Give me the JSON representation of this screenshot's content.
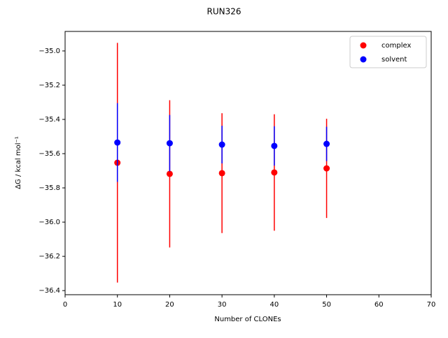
{
  "chart_data": {
    "type": "errorbar-scatter",
    "title": "RUN326",
    "x_label": "Number of CLONEs",
    "y_label": "ΔG / kcal mol⁻¹",
    "xlim": [
      0,
      70
    ],
    "xticks": [
      0,
      10,
      20,
      30,
      40,
      50,
      60,
      70
    ],
    "ylim": [
      -36.424,
      -34.886
    ],
    "yticks": [
      {
        "value": -36.4,
        "label": "−36.4"
      },
      {
        "value": -36.2,
        "label": "−36.2"
      },
      {
        "value": -36.0,
        "label": "−36.0"
      },
      {
        "value": -35.8,
        "label": "−35.8"
      },
      {
        "value": -35.6,
        "label": "−35.6"
      },
      {
        "value": -35.4,
        "label": "−35.4"
      },
      {
        "value": -35.2,
        "label": "−35.2"
      },
      {
        "value": -35.0,
        "label": "−35.0"
      }
    ],
    "legend_position": "upper right",
    "series": [
      {
        "name": "complex",
        "color": "#ff0000",
        "x": [
          10,
          20,
          30,
          40,
          50
        ],
        "values": [
          -35.653,
          -35.718,
          -35.714,
          -35.71,
          -35.686
        ],
        "errors": [
          0.7,
          0.43,
          0.35,
          0.34,
          0.29
        ]
      },
      {
        "name": "solvent",
        "color": "#0000ff",
        "x": [
          10,
          20,
          30,
          40,
          50
        ],
        "values": [
          -35.535,
          -35.539,
          -35.547,
          -35.555,
          -35.543
        ],
        "errors": [
          0.23,
          0.165,
          0.11,
          0.115,
          0.1
        ]
      }
    ]
  }
}
